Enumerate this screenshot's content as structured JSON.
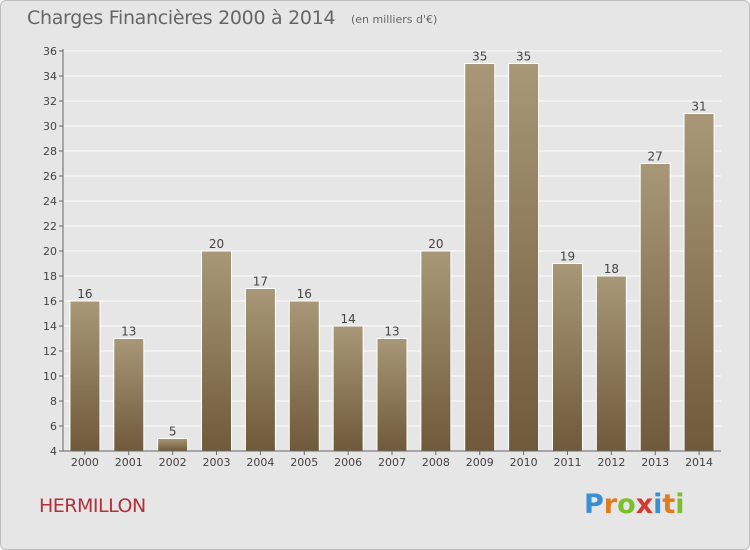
{
  "header": {
    "title": "Charges Financières 2000 à 2014",
    "unit": "(en milliers d'€)"
  },
  "footer": {
    "place": "HERMILLON",
    "logo_letters": [
      "P",
      "r",
      "o",
      "x",
      "i",
      "t",
      "i"
    ],
    "logo_colors": [
      "#3a8fd1",
      "#e07b1e",
      "#7bbf2a",
      "#d23a2f",
      "#3a8fd1",
      "#e07b1e",
      "#7bbf2a"
    ]
  },
  "colors": {
    "background": "#e6e6e6",
    "plot_background": "#e6e6e6",
    "grid": "#ffffff",
    "bar_top": "#a89878",
    "bar_bottom": "#6f5a3b"
  },
  "chart_data": {
    "type": "bar",
    "title": "Charges Financières 2000 à 2014",
    "subtitle": "(en milliers d'€)",
    "categories": [
      "2000",
      "2001",
      "2002",
      "2003",
      "2004",
      "2005",
      "2006",
      "2007",
      "2008",
      "2009",
      "2010",
      "2011",
      "2012",
      "2013",
      "2014"
    ],
    "values": [
      16,
      13,
      5,
      20,
      17,
      16,
      14,
      13,
      20,
      35,
      35,
      19,
      18,
      27,
      31
    ],
    "ylim": [
      4,
      36
    ],
    "yticks": [
      4,
      6,
      8,
      10,
      12,
      14,
      16,
      18,
      20,
      22,
      24,
      26,
      28,
      30,
      32,
      34,
      36
    ],
    "grid": true,
    "data_labels": true
  }
}
